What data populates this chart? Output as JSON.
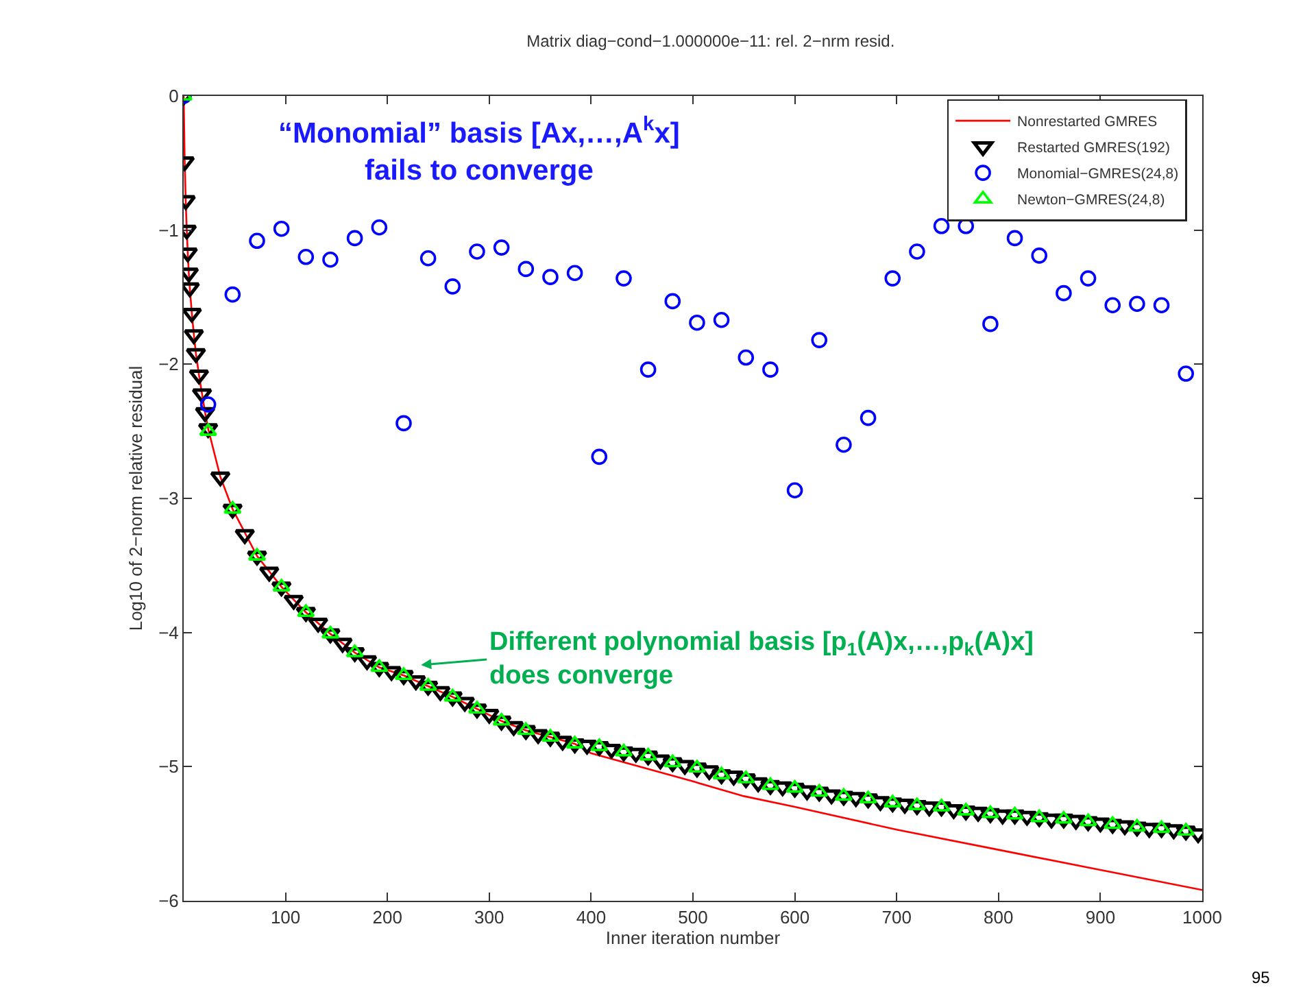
{
  "chart_data": {
    "type": "line",
    "title": "Matrix diag−cond−1.000000e−11: rel. 2−nrm resid.",
    "xlabel": "Inner iteration number",
    "ylabel": "Log10 of 2−norm relative residual",
    "xlim": [
      0,
      1000
    ],
    "xticks": [
      100,
      200,
      300,
      400,
      500,
      600,
      700,
      800,
      900,
      1000
    ],
    "ylim": [
      -6,
      0
    ],
    "yticks": [
      {
        "value": -6,
        "label": "−6"
      },
      {
        "value": -5,
        "label": "−5"
      },
      {
        "value": -4,
        "label": "−4"
      },
      {
        "value": -3,
        "label": "−3"
      },
      {
        "value": -2,
        "label": "−2"
      },
      {
        "value": -1,
        "label": "−1"
      },
      0
    ],
    "grid": false,
    "legend": "top right",
    "series": [
      {
        "name": "Nonrestarted GMRES",
        "type": "line",
        "color": "#ff0000",
        "marker": "none",
        "line_style": "solid",
        "x": [
          0,
          1,
          2,
          3,
          4,
          5,
          6,
          8,
          10,
          12,
          15,
          18,
          21,
          24,
          36,
          48,
          72,
          96,
          120,
          144,
          168,
          192,
          216,
          240,
          264,
          288,
          312,
          336,
          360,
          384,
          400,
          500,
          550,
          600,
          700,
          800,
          900,
          1000
        ],
        "values": [
          0,
          -0.49,
          -0.78,
          -1.0,
          -1.17,
          -1.32,
          -1.43,
          -1.62,
          -1.78,
          -1.92,
          -2.08,
          -2.22,
          -2.36,
          -2.48,
          -2.84,
          -3.08,
          -3.43,
          -3.66,
          -3.85,
          -4.01,
          -4.15,
          -4.26,
          -4.32,
          -4.4,
          -4.48,
          -4.57,
          -4.66,
          -4.73,
          -4.78,
          -4.83,
          -4.9,
          -5.11,
          -5.22,
          -5.3,
          -5.47,
          -5.62,
          -5.77,
          -5.92
        ]
      },
      {
        "name": "Restarted GMRES(192)",
        "type": "scatter",
        "color": "#000000",
        "marker": "triangle-down",
        "x": [
          0,
          1,
          2,
          3,
          4,
          5,
          6,
          8,
          10,
          12,
          15,
          18,
          21,
          24,
          36,
          48,
          60,
          72,
          84,
          96,
          108,
          120,
          132,
          144,
          156,
          168,
          180,
          192,
          204,
          216,
          228,
          240,
          252,
          264,
          276,
          288,
          300,
          312,
          324,
          336,
          348,
          360,
          372,
          384,
          396,
          408,
          420,
          432,
          444,
          456,
          468,
          480,
          492,
          504,
          516,
          528,
          540,
          552,
          564,
          576,
          588,
          600,
          612,
          624,
          636,
          648,
          660,
          672,
          684,
          696,
          708,
          720,
          732,
          744,
          756,
          768,
          780,
          792,
          804,
          816,
          828,
          840,
          852,
          864,
          876,
          888,
          900,
          912,
          924,
          936,
          948,
          960,
          972,
          984,
          996
        ],
        "values": [
          0,
          -0.49,
          -0.78,
          -1.0,
          -1.17,
          -1.32,
          -1.43,
          -1.62,
          -1.78,
          -1.92,
          -2.08,
          -2.22,
          -2.36,
          -2.48,
          -2.84,
          -3.08,
          -3.27,
          -3.43,
          -3.55,
          -3.66,
          -3.76,
          -3.85,
          -3.93,
          -4.01,
          -4.08,
          -4.15,
          -4.21,
          -4.26,
          -4.29,
          -4.32,
          -4.36,
          -4.4,
          -4.44,
          -4.48,
          -4.52,
          -4.57,
          -4.61,
          -4.66,
          -4.7,
          -4.73,
          -4.76,
          -4.78,
          -4.81,
          -4.83,
          -4.84,
          -4.85,
          -4.87,
          -4.89,
          -4.9,
          -4.92,
          -4.95,
          -4.97,
          -4.99,
          -5.01,
          -5.03,
          -5.06,
          -5.07,
          -5.09,
          -5.12,
          -5.14,
          -5.15,
          -5.16,
          -5.18,
          -5.19,
          -5.21,
          -5.22,
          -5.23,
          -5.24,
          -5.26,
          -5.27,
          -5.28,
          -5.29,
          -5.3,
          -5.3,
          -5.32,
          -5.33,
          -5.34,
          -5.35,
          -5.36,
          -5.36,
          -5.37,
          -5.38,
          -5.39,
          -5.39,
          -5.4,
          -5.41,
          -5.42,
          -5.43,
          -5.44,
          -5.45,
          -5.46,
          -5.46,
          -5.47,
          -5.48,
          -5.5
        ]
      },
      {
        "name": "Monomial−GMRES(24,8)",
        "type": "scatter",
        "color": "#0000ff",
        "marker": "circle",
        "x": [
          0,
          24,
          48,
          72,
          96,
          120,
          144,
          168,
          192,
          216,
          240,
          264,
          288,
          312,
          336,
          360,
          384,
          408,
          432,
          456,
          480,
          504,
          528,
          552,
          576,
          600,
          624,
          648,
          672,
          696,
          720,
          744,
          768,
          792,
          816,
          840,
          864,
          888,
          912,
          936,
          960,
          984
        ],
        "values": [
          0,
          -2.3,
          -1.48,
          -1.08,
          -0.99,
          -1.2,
          -1.22,
          -1.06,
          -0.98,
          -2.44,
          -1.21,
          -1.42,
          -1.16,
          -1.13,
          -1.29,
          -1.35,
          -1.32,
          -2.69,
          -1.36,
          -2.04,
          -1.53,
          -1.69,
          -1.67,
          -1.95,
          -2.04,
          -2.94,
          -1.82,
          -2.6,
          -2.4,
          -1.36,
          -1.16,
          -0.97,
          -0.97,
          -1.7,
          -1.06,
          -1.19,
          -1.47,
          -1.36,
          -1.56,
          -1.55,
          -1.56,
          -2.07
        ]
      },
      {
        "name": "Newton−GMRES(24,8)",
        "type": "scatter",
        "color": "#00ff00",
        "marker": "triangle",
        "x": [
          0,
          24,
          48,
          72,
          96,
          120,
          144,
          168,
          192,
          216,
          240,
          264,
          288,
          312,
          336,
          360,
          384,
          408,
          432,
          456,
          480,
          504,
          528,
          552,
          576,
          600,
          624,
          648,
          672,
          696,
          720,
          744,
          768,
          792,
          816,
          840,
          864,
          888,
          912,
          936,
          960,
          984
        ],
        "values": [
          0,
          -2.5,
          -3.08,
          -3.43,
          -3.66,
          -3.85,
          -4.01,
          -4.15,
          -4.26,
          -4.32,
          -4.4,
          -4.48,
          -4.57,
          -4.66,
          -4.73,
          -4.78,
          -4.83,
          -4.85,
          -4.89,
          -4.92,
          -4.97,
          -5.01,
          -5.06,
          -5.09,
          -5.14,
          -5.16,
          -5.19,
          -5.22,
          -5.24,
          -5.27,
          -5.29,
          -5.3,
          -5.33,
          -5.35,
          -5.36,
          -5.38,
          -5.39,
          -5.41,
          -5.43,
          -5.45,
          -5.46,
          -5.48
        ]
      }
    ],
    "annotations": [
      "“Monomial” basis [Ax,…,A$^{k}$x]\nfails to converge",
      "Different polynomial basis [p$_{1}$(A)x,…,p$_{k}$(A)x]\ndoes converge",
      "95"
    ]
  }
}
